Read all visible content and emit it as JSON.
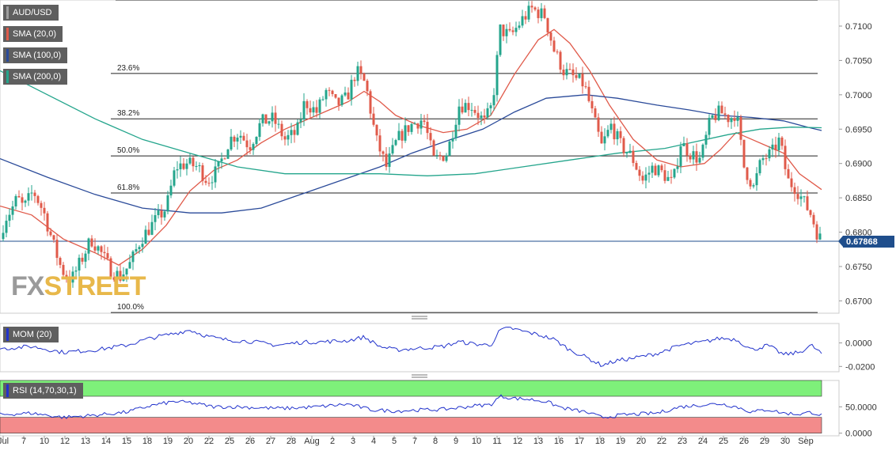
{
  "instrument": "AUD/USD",
  "current_price": "0.67868",
  "watermark": {
    "part1": "FX",
    "part2": "STREET"
  },
  "legends": {
    "main": [
      {
        "label": "AUD/USD",
        "color": "#9e9e9e"
      },
      {
        "label": "SMA (20,0)",
        "color": "#e05a4a"
      },
      {
        "label": "SMA (100,0)",
        "color": "#2a4a99"
      },
      {
        "label": "SMA (200,0)",
        "color": "#24a58c"
      }
    ],
    "mom": {
      "label": "MOM (20)",
      "color": "#2233cc"
    },
    "rsi": {
      "label": "RSI (14,70,30,1)",
      "color": "#2233cc"
    }
  },
  "colors": {
    "up": "#24a58c",
    "down": "#e05a4a",
    "rsi_overbought": "#7ef07a",
    "rsi_oversold": "#f38b8b"
  },
  "chart_data": [
    {
      "type": "candlestick",
      "title": "AUD/USD",
      "ylim": [
        0.6682,
        0.7138
      ],
      "y_ticks": [
        "0.7100",
        "0.7050",
        "0.7000",
        "0.6950",
        "0.6900",
        "0.6850",
        "0.6800",
        "0.6750",
        "0.6700"
      ],
      "x_tick_labels": [
        "Jul",
        "7",
        "10",
        "12",
        "13",
        "14",
        "15",
        "18",
        "19",
        "20",
        "22",
        "25",
        "26",
        "27",
        "28",
        "Aug",
        "2",
        "3",
        "4",
        "5",
        "7",
        "8",
        "9",
        "10",
        "11",
        "12",
        "13",
        "16",
        "17",
        "18",
        "19",
        "20",
        "22",
        "23",
        "24",
        "25",
        "26",
        "29",
        "30",
        "Sep"
      ],
      "fibonacci": [
        {
          "label": "23.6%",
          "value": 0.7031
        },
        {
          "label": "38.2%",
          "value": 0.6965
        },
        {
          "label": "50.0%",
          "value": 0.6911
        },
        {
          "label": "61.8%",
          "value": 0.6857
        },
        {
          "label": "100.0%",
          "value": 0.6683
        },
        {
          "label": "",
          "value": 0.7138
        }
      ],
      "current_price": 0.67868,
      "close_path": [
        [
          0,
          0.679
        ],
        [
          6,
          0.682
        ],
        [
          14,
          0.6832
        ],
        [
          22,
          0.685
        ],
        [
          30,
          0.6835
        ],
        [
          42,
          0.686
        ],
        [
          55,
          0.683
        ],
        [
          68,
          0.678
        ],
        [
          78,
          0.6745
        ],
        [
          90,
          0.673
        ],
        [
          103,
          0.676
        ],
        [
          115,
          0.679
        ],
        [
          125,
          0.6775
        ],
        [
          140,
          0.6745
        ],
        [
          152,
          0.6735
        ],
        [
          165,
          0.6755
        ],
        [
          178,
          0.679
        ],
        [
          195,
          0.6815
        ],
        [
          210,
          0.6835
        ],
        [
          222,
          0.6895
        ],
        [
          236,
          0.69
        ],
        [
          250,
          0.6895
        ],
        [
          262,
          0.6875
        ],
        [
          275,
          0.689
        ],
        [
          290,
          0.6935
        ],
        [
          302,
          0.6945
        ],
        [
          315,
          0.6925
        ],
        [
          330,
          0.696
        ],
        [
          345,
          0.6965
        ],
        [
          360,
          0.6935
        ],
        [
          375,
          0.6945
        ],
        [
          385,
          0.699
        ],
        [
          400,
          0.6975
        ],
        [
          412,
          0.7005
        ],
        [
          425,
          0.6985
        ],
        [
          438,
          0.6995
        ],
        [
          450,
          0.7035
        ],
        [
          462,
          0.7015
        ],
        [
          475,
          0.6935
        ],
        [
          488,
          0.6895
        ],
        [
          502,
          0.6935
        ],
        [
          518,
          0.6955
        ],
        [
          535,
          0.6965
        ],
        [
          548,
          0.6905
        ],
        [
          565,
          0.6915
        ],
        [
          580,
          0.6985
        ],
        [
          595,
          0.6985
        ],
        [
          612,
          0.696
        ],
        [
          622,
          0.6985
        ],
        [
          632,
          0.7095
        ],
        [
          645,
          0.7085
        ],
        [
          660,
          0.711
        ],
        [
          672,
          0.7125
        ],
        [
          688,
          0.7115
        ],
        [
          700,
          0.7065
        ],
        [
          712,
          0.7035
        ],
        [
          725,
          0.7025
        ],
        [
          738,
          0.7015
        ],
        [
          750,
          0.6965
        ],
        [
          760,
          0.6925
        ],
        [
          772,
          0.6955
        ],
        [
          785,
          0.6925
        ],
        [
          798,
          0.691
        ],
        [
          812,
          0.6875
        ],
        [
          825,
          0.6895
        ],
        [
          838,
          0.6885
        ],
        [
          850,
          0.687
        ],
        [
          860,
          0.693
        ],
        [
          872,
          0.6915
        ],
        [
          885,
          0.6905
        ],
        [
          898,
          0.6965
        ],
        [
          910,
          0.6975
        ],
        [
          922,
          0.6965
        ],
        [
          930,
          0.6975
        ],
        [
          940,
          0.6895
        ],
        [
          952,
          0.6865
        ],
        [
          962,
          0.6905
        ],
        [
          975,
          0.6915
        ],
        [
          985,
          0.6935
        ],
        [
          995,
          0.6875
        ],
        [
          1005,
          0.6865
        ],
        [
          1015,
          0.6845
        ],
        [
          1025,
          0.6825
        ],
        [
          1032,
          0.68
        ],
        [
          1038,
          0.6787
        ]
      ],
      "series": [
        {
          "name": "SMA (20,0)",
          "points": [
            [
              0,
              0.6838
            ],
            [
              40,
              0.6825
            ],
            [
              80,
              0.679
            ],
            [
              120,
              0.677
            ],
            [
              150,
              0.6752
            ],
            [
              180,
              0.6775
            ],
            [
              210,
              0.681
            ],
            [
              240,
              0.686
            ],
            [
              270,
              0.689
            ],
            [
              300,
              0.6905
            ],
            [
              330,
              0.693
            ],
            [
              360,
              0.695
            ],
            [
              400,
              0.697
            ],
            [
              440,
              0.699
            ],
            [
              460,
              0.7005
            ],
            [
              480,
              0.699
            ],
            [
              500,
              0.697
            ],
            [
              530,
              0.6955
            ],
            [
              560,
              0.6945
            ],
            [
              590,
              0.695
            ],
            [
              620,
              0.697
            ],
            [
              650,
              0.703
            ],
            [
              680,
              0.708
            ],
            [
              700,
              0.7095
            ],
            [
              720,
              0.7075
            ],
            [
              745,
              0.7035
            ],
            [
              770,
              0.6985
            ],
            [
              800,
              0.6935
            ],
            [
              830,
              0.6905
            ],
            [
              860,
              0.6895
            ],
            [
              890,
              0.69
            ],
            [
              910,
              0.692
            ],
            [
              930,
              0.6945
            ],
            [
              950,
              0.6935
            ],
            [
              970,
              0.6925
            ],
            [
              990,
              0.6915
            ],
            [
              1010,
              0.6885
            ],
            [
              1038,
              0.6862
            ]
          ]
        },
        {
          "name": "SMA (100,0)",
          "points": [
            [
              0,
              0.6907
            ],
            [
              60,
              0.688
            ],
            [
              120,
              0.6855
            ],
            [
              180,
              0.6835
            ],
            [
              240,
              0.6828
            ],
            [
              280,
              0.6828
            ],
            [
              330,
              0.6835
            ],
            [
              380,
              0.6855
            ],
            [
              430,
              0.6875
            ],
            [
              480,
              0.6895
            ],
            [
              520,
              0.6915
            ],
            [
              570,
              0.6935
            ],
            [
              610,
              0.695
            ],
            [
              650,
              0.6975
            ],
            [
              690,
              0.6995
            ],
            [
              740,
              0.7
            ],
            [
              780,
              0.6995
            ],
            [
              830,
              0.6985
            ],
            [
              870,
              0.6978
            ],
            [
              910,
              0.697
            ],
            [
              950,
              0.6967
            ],
            [
              990,
              0.6962
            ],
            [
              1020,
              0.6953
            ],
            [
              1038,
              0.6948
            ]
          ]
        },
        {
          "name": "SMA (200,0)",
          "points": [
            [
              0,
              0.7035
            ],
            [
              60,
              0.7
            ],
            [
              120,
              0.6965
            ],
            [
              180,
              0.6935
            ],
            [
              240,
              0.6915
            ],
            [
              300,
              0.6895
            ],
            [
              360,
              0.6885
            ],
            [
              420,
              0.6885
            ],
            [
              480,
              0.6885
            ],
            [
              540,
              0.6882
            ],
            [
              600,
              0.6885
            ],
            [
              660,
              0.6895
            ],
            [
              720,
              0.6905
            ],
            [
              780,
              0.6915
            ],
            [
              840,
              0.6922
            ],
            [
              880,
              0.6932
            ],
            [
              920,
              0.6942
            ],
            [
              960,
              0.695
            ],
            [
              1000,
              0.6953
            ],
            [
              1038,
              0.6952
            ]
          ]
        }
      ]
    },
    {
      "type": "line",
      "title": "MOM (20)",
      "ylim": [
        -0.0245,
        0.0165
      ],
      "y_ticks": [
        "0.0000",
        "-0.0200"
      ],
      "series": [
        {
          "name": "MOM (20)",
          "points": [
            [
              0,
              -0.005
            ],
            [
              40,
              -0.003
            ],
            [
              80,
              -0.008
            ],
            [
              120,
              -0.006
            ],
            [
              160,
              -0.002
            ],
            [
              190,
              0.004
            ],
            [
              220,
              0.008
            ],
            [
              240,
              0.011
            ],
            [
              260,
              0.006
            ],
            [
              280,
              0.003
            ],
            [
              300,
              0.002
            ],
            [
              320,
              0.001
            ],
            [
              350,
              -0.002
            ],
            [
              380,
              0.0005
            ],
            [
              410,
              0.001
            ],
            [
              440,
              0.002
            ],
            [
              460,
              0.005
            ],
            [
              480,
              -0.003
            ],
            [
              500,
              -0.006
            ],
            [
              520,
              -0.005
            ],
            [
              540,
              -0.004
            ],
            [
              560,
              -0.003
            ],
            [
              580,
              0.001
            ],
            [
              600,
              -0.001
            ],
            [
              620,
              -0.002
            ],
            [
              632,
              0.011
            ],
            [
              645,
              0.0125
            ],
            [
              660,
              0.01
            ],
            [
              680,
              0.007
            ],
            [
              700,
              0.003
            ],
            [
              720,
              -0.006
            ],
            [
              740,
              -0.012
            ],
            [
              760,
              -0.019
            ],
            [
              780,
              -0.015
            ],
            [
              800,
              -0.013
            ],
            [
              830,
              -0.009
            ],
            [
              860,
              -0.002
            ],
            [
              890,
              0.001
            ],
            [
              910,
              0.004
            ],
            [
              930,
              0.003
            ],
            [
              950,
              -0.006
            ],
            [
              970,
              -0.002
            ],
            [
              990,
              -0.01
            ],
            [
              1010,
              -0.008
            ],
            [
              1025,
              -0.002
            ],
            [
              1038,
              -0.009
            ]
          ]
        }
      ]
    },
    {
      "type": "line",
      "title": "RSI (14,70,30,1)",
      "ylim": [
        -5,
        100
      ],
      "y_ticks": [
        "50.0000",
        "0.0000"
      ],
      "bands": [
        {
          "from": 70,
          "to": 100,
          "color": "#7ef07a"
        },
        {
          "from": 0,
          "to": 30,
          "color": "#f38b8b"
        }
      ],
      "series": [
        {
          "name": "RSI (14,70,30,1)",
          "points": [
            [
              0,
              35
            ],
            [
              40,
              38
            ],
            [
              80,
              30
            ],
            [
              120,
              34
            ],
            [
              160,
              40
            ],
            [
              190,
              52
            ],
            [
              220,
              60
            ],
            [
              240,
              58
            ],
            [
              270,
              50
            ],
            [
              300,
              50
            ],
            [
              330,
              48
            ],
            [
              360,
              47
            ],
            [
              400,
              50
            ],
            [
              440,
              55
            ],
            [
              470,
              44
            ],
            [
              500,
              42
            ],
            [
              530,
              44
            ],
            [
              560,
              45
            ],
            [
              600,
              52
            ],
            [
              620,
              54
            ],
            [
              632,
              70
            ],
            [
              650,
              66
            ],
            [
              670,
              64
            ],
            [
              690,
              60
            ],
            [
              710,
              48
            ],
            [
              740,
              40
            ],
            [
              760,
              30
            ],
            [
              790,
              35
            ],
            [
              830,
              38
            ],
            [
              860,
              50
            ],
            [
              890,
              54
            ],
            [
              910,
              56
            ],
            [
              930,
              50
            ],
            [
              950,
              40
            ],
            [
              970,
              45
            ],
            [
              990,
              38
            ],
            [
              1010,
              36
            ],
            [
              1025,
              40
            ],
            [
              1038,
              34
            ]
          ]
        }
      ]
    }
  ]
}
